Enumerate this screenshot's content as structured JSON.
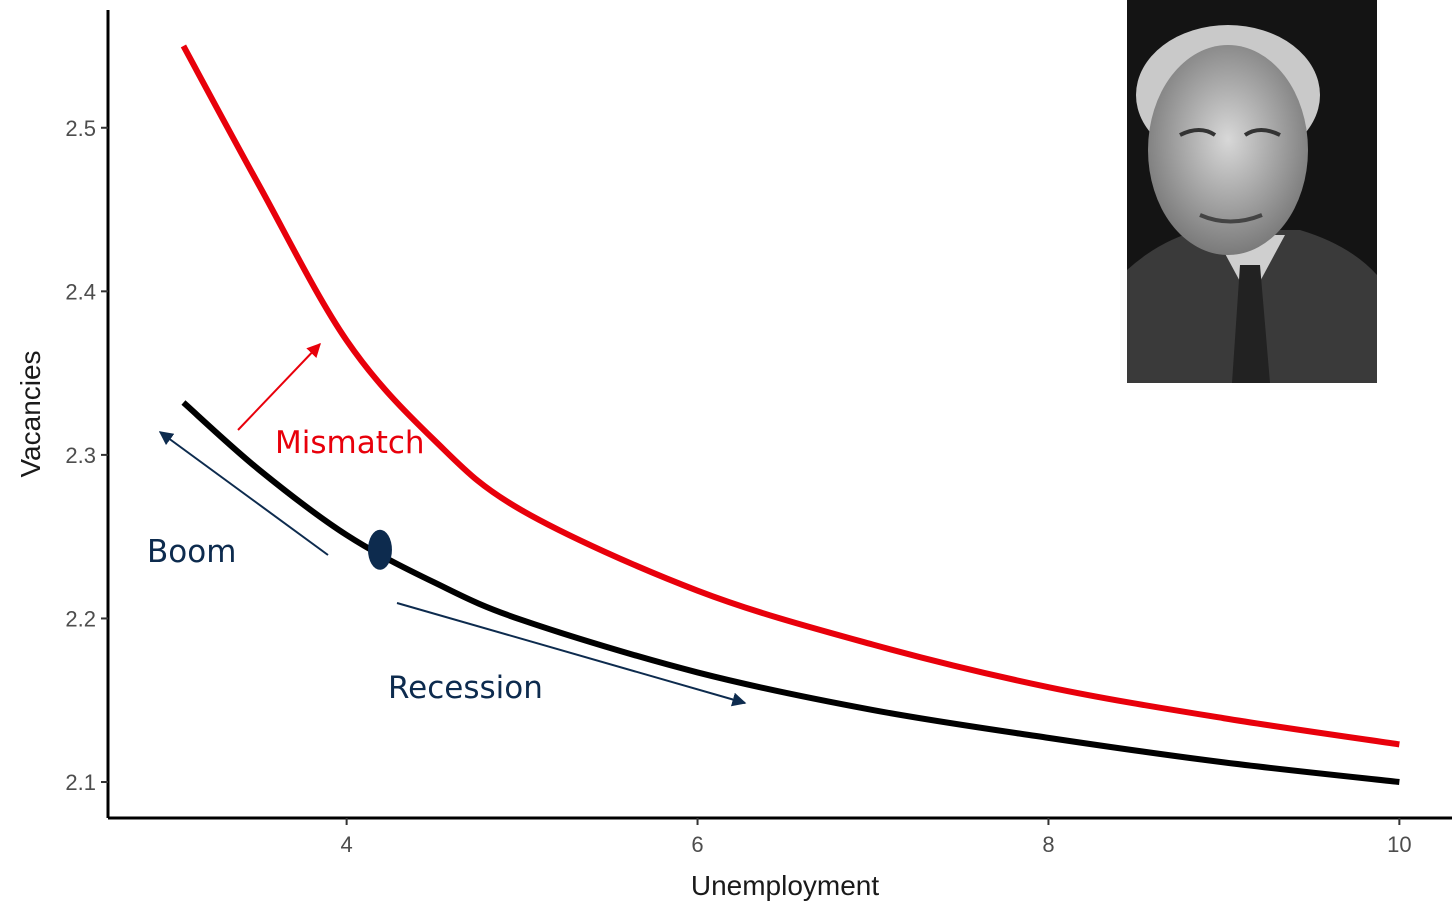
{
  "chart_data": {
    "type": "line",
    "x_label": "Unemployment",
    "y_label": "Vacancies",
    "x": [
      3.07,
      3.5,
      4,
      4.5,
      5,
      6,
      7,
      8,
      9,
      10
    ],
    "series": [
      {
        "color": "#000000",
        "values": [
          2.332,
          2.291,
          2.251,
          2.222,
          2.199,
          2.167,
          2.144,
          2.127,
          2.112,
          2.1
        ]
      },
      {
        "color": "#e8000b",
        "values": [
          2.55,
          2.465,
          2.37,
          2.309,
          2.266,
          2.217,
          2.184,
          2.158,
          2.139,
          2.123
        ]
      }
    ],
    "marker": {
      "x": 4.19,
      "y": 2.242,
      "color": "#0d2b4e"
    },
    "annotations": [
      {
        "text": "Mismatch",
        "color": "#e8000b"
      },
      {
        "text": "Boom",
        "color": "#0d2b4e"
      },
      {
        "text": "Recession",
        "color": "#0d2b4e"
      }
    ],
    "xlim": [
      2.64,
      10.3
    ],
    "ylim": [
      2.078,
      2.572
    ],
    "xticks": [
      4,
      6,
      8,
      10
    ],
    "yticks": [
      2.1,
      2.2,
      2.3,
      2.4,
      2.5
    ],
    "grid": false
  }
}
